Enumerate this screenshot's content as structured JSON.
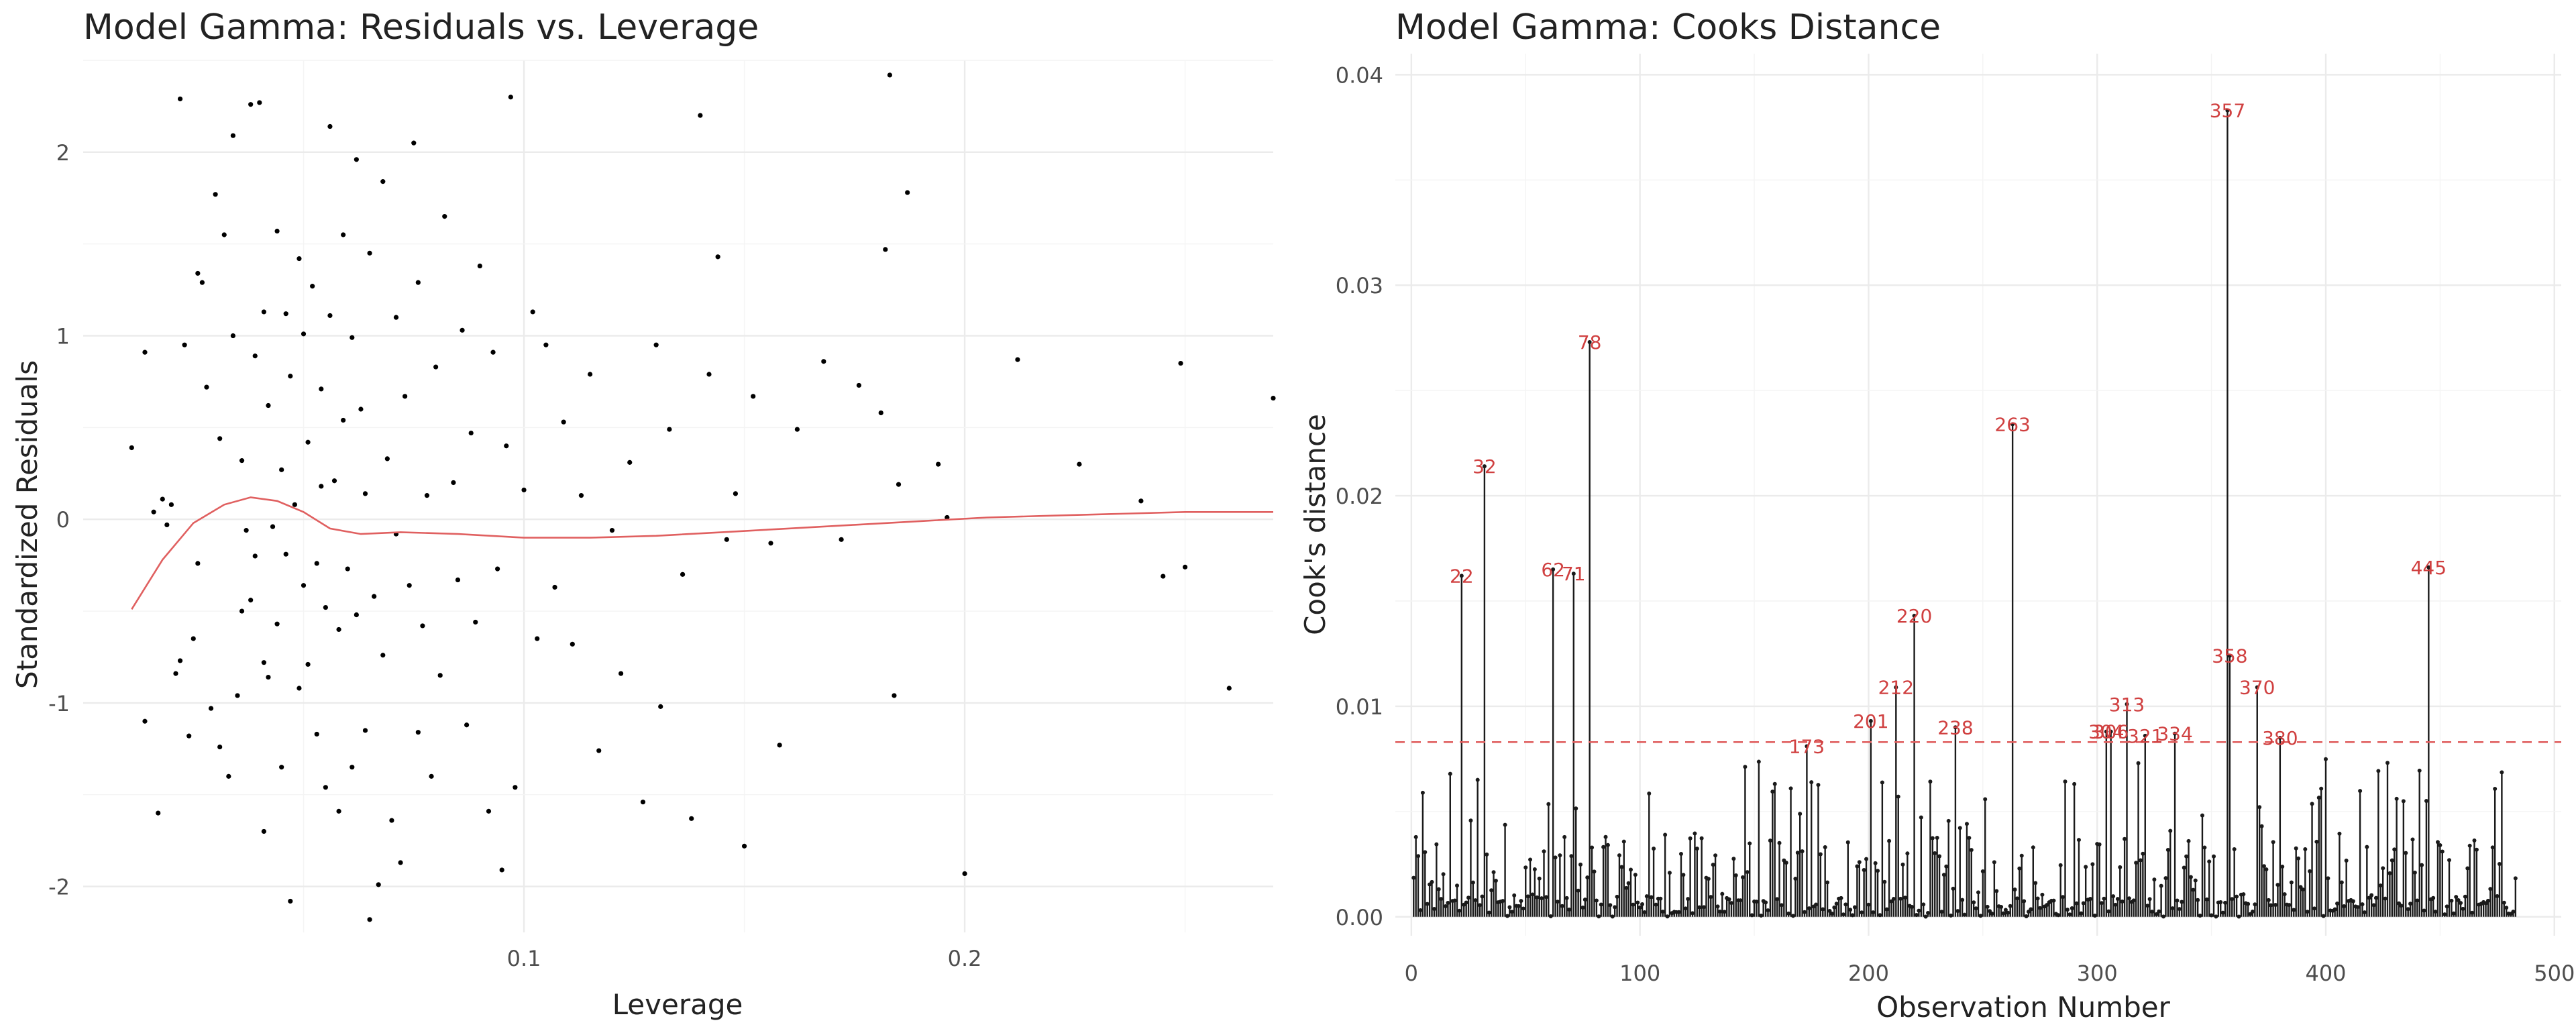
{
  "chart_data": [
    {
      "type": "scatter",
      "title": "Model Gamma: Residuals vs. Leverage",
      "xlabel": "Leverage",
      "ylabel": "Standardized Residuals",
      "xlim": [
        0.0,
        0.27
      ],
      "ylim": [
        -2.25,
        2.5
      ],
      "xticks": [
        0.1,
        0.2
      ],
      "xtick_labels": [
        "0.1",
        "0.2"
      ],
      "yticks": [
        -2,
        -1,
        0,
        1,
        2
      ],
      "ytick_labels": [
        "-2",
        "-1",
        "0",
        "1",
        "2"
      ],
      "grid": true,
      "point_color": "#000000",
      "smooth_color": "#e06060",
      "points": [
        [
          0.011,
          0.39
        ],
        [
          0.014,
          0.91
        ],
        [
          0.014,
          -1.1
        ],
        [
          0.016,
          0.04
        ],
        [
          0.017,
          -1.6
        ],
        [
          0.018,
          0.11
        ],
        [
          0.019,
          -0.03
        ],
        [
          0.02,
          0.08
        ],
        [
          0.021,
          -0.84
        ],
        [
          0.022,
          2.29
        ],
        [
          0.022,
          -0.77
        ],
        [
          0.023,
          0.95
        ],
        [
          0.024,
          -1.18
        ],
        [
          0.025,
          -0.65
        ],
        [
          0.026,
          1.34
        ],
        [
          0.026,
          -0.24
        ],
        [
          0.027,
          1.29
        ],
        [
          0.028,
          0.72
        ],
        [
          0.029,
          -1.03
        ],
        [
          0.03,
          1.77
        ],
        [
          0.031,
          -1.24
        ],
        [
          0.031,
          0.44
        ],
        [
          0.032,
          1.55
        ],
        [
          0.033,
          -1.4
        ],
        [
          0.034,
          2.09
        ],
        [
          0.034,
          1.0
        ],
        [
          0.035,
          -0.96
        ],
        [
          0.036,
          0.32
        ],
        [
          0.036,
          -0.5
        ],
        [
          0.037,
          -0.06
        ],
        [
          0.038,
          -0.44
        ],
        [
          0.038,
          2.26
        ],
        [
          0.039,
          -0.2
        ],
        [
          0.039,
          0.89
        ],
        [
          0.04,
          2.27
        ],
        [
          0.041,
          1.13
        ],
        [
          0.041,
          -0.78
        ],
        [
          0.041,
          -1.7
        ],
        [
          0.042,
          -0.86
        ],
        [
          0.042,
          0.62
        ],
        [
          0.043,
          -0.04
        ],
        [
          0.044,
          1.57
        ],
        [
          0.044,
          -0.57
        ],
        [
          0.045,
          -1.35
        ],
        [
          0.045,
          0.27
        ],
        [
          0.046,
          1.12
        ],
        [
          0.046,
          -0.19
        ],
        [
          0.047,
          -2.08
        ],
        [
          0.047,
          0.78
        ],
        [
          0.048,
          0.08
        ],
        [
          0.049,
          -0.92
        ],
        [
          0.049,
          1.42
        ],
        [
          0.05,
          1.01
        ],
        [
          0.05,
          -0.36
        ],
        [
          0.051,
          -0.79
        ],
        [
          0.051,
          0.42
        ],
        [
          0.052,
          1.27
        ],
        [
          0.053,
          -0.24
        ],
        [
          0.053,
          -1.17
        ],
        [
          0.054,
          0.18
        ],
        [
          0.054,
          0.71
        ],
        [
          0.055,
          -1.46
        ],
        [
          0.055,
          -0.48
        ],
        [
          0.056,
          2.14
        ],
        [
          0.056,
          1.11
        ],
        [
          0.057,
          0.21
        ],
        [
          0.058,
          -0.6
        ],
        [
          0.058,
          -1.59
        ],
        [
          0.059,
          0.54
        ],
        [
          0.059,
          1.55
        ],
        [
          0.06,
          -0.27
        ],
        [
          0.061,
          0.99
        ],
        [
          0.061,
          -1.35
        ],
        [
          0.062,
          1.96
        ],
        [
          0.062,
          -0.52
        ],
        [
          0.063,
          0.6
        ],
        [
          0.064,
          -1.15
        ],
        [
          0.064,
          0.14
        ],
        [
          0.065,
          1.45
        ],
        [
          0.065,
          -2.18
        ],
        [
          0.066,
          -0.42
        ],
        [
          0.067,
          -1.99
        ],
        [
          0.068,
          1.84
        ],
        [
          0.068,
          -0.74
        ],
        [
          0.069,
          0.33
        ],
        [
          0.07,
          -1.64
        ],
        [
          0.071,
          1.1
        ],
        [
          0.071,
          -0.08
        ],
        [
          0.072,
          -1.87
        ],
        [
          0.073,
          0.67
        ],
        [
          0.074,
          -0.36
        ],
        [
          0.075,
          2.05
        ],
        [
          0.076,
          1.29
        ],
        [
          0.076,
          -1.16
        ],
        [
          0.077,
          -0.58
        ],
        [
          0.078,
          0.13
        ],
        [
          0.079,
          -1.4
        ],
        [
          0.08,
          0.83
        ],
        [
          0.081,
          -0.85
        ],
        [
          0.082,
          1.65
        ],
        [
          0.084,
          0.2
        ],
        [
          0.085,
          -0.33
        ],
        [
          0.086,
          1.03
        ],
        [
          0.087,
          -1.12
        ],
        [
          0.088,
          0.47
        ],
        [
          0.089,
          -0.56
        ],
        [
          0.09,
          1.38
        ],
        [
          0.092,
          -1.59
        ],
        [
          0.093,
          0.91
        ],
        [
          0.094,
          -0.27
        ],
        [
          0.095,
          -1.91
        ],
        [
          0.096,
          0.4
        ],
        [
          0.097,
          2.3
        ],
        [
          0.098,
          -1.46
        ],
        [
          0.1,
          0.16
        ],
        [
          0.102,
          1.13
        ],
        [
          0.103,
          -0.65
        ],
        [
          0.105,
          0.95
        ],
        [
          0.107,
          -0.37
        ],
        [
          0.109,
          0.53
        ],
        [
          0.111,
          -0.68
        ],
        [
          0.113,
          0.13
        ],
        [
          0.115,
          0.79
        ],
        [
          0.117,
          -1.26
        ],
        [
          0.12,
          -0.06
        ],
        [
          0.122,
          -0.84
        ],
        [
          0.124,
          0.31
        ],
        [
          0.127,
          -1.54
        ],
        [
          0.13,
          0.95
        ],
        [
          0.131,
          -1.02
        ],
        [
          0.133,
          0.49
        ],
        [
          0.136,
          -0.3
        ],
        [
          0.138,
          -1.63
        ],
        [
          0.14,
          2.2
        ],
        [
          0.142,
          0.79
        ],
        [
          0.144,
          1.43
        ],
        [
          0.146,
          -0.11
        ],
        [
          0.148,
          0.14
        ],
        [
          0.15,
          -1.78
        ],
        [
          0.152,
          0.67
        ],
        [
          0.156,
          -0.13
        ],
        [
          0.158,
          -1.23
        ],
        [
          0.162,
          0.49
        ],
        [
          0.168,
          0.86
        ],
        [
          0.172,
          -0.11
        ],
        [
          0.176,
          0.73
        ],
        [
          0.181,
          0.58
        ],
        [
          0.182,
          1.47
        ],
        [
          0.183,
          2.42
        ],
        [
          0.184,
          -0.96
        ],
        [
          0.185,
          0.19
        ],
        [
          0.187,
          1.78
        ],
        [
          0.194,
          0.3
        ],
        [
          0.196,
          0.01
        ],
        [
          0.2,
          -1.93
        ],
        [
          0.212,
          0.87
        ],
        [
          0.226,
          0.3
        ],
        [
          0.24,
          0.1
        ],
        [
          0.245,
          -0.31
        ],
        [
          0.25,
          -0.26
        ],
        [
          0.249,
          0.85
        ],
        [
          0.26,
          -0.92
        ],
        [
          0.27,
          0.66
        ]
      ],
      "smooth": [
        [
          0.011,
          -0.49
        ],
        [
          0.018,
          -0.22
        ],
        [
          0.025,
          -0.02
        ],
        [
          0.032,
          0.08
        ],
        [
          0.038,
          0.12
        ],
        [
          0.044,
          0.1
        ],
        [
          0.05,
          0.04
        ],
        [
          0.056,
          -0.05
        ],
        [
          0.063,
          -0.08
        ],
        [
          0.072,
          -0.07
        ],
        [
          0.085,
          -0.08
        ],
        [
          0.1,
          -0.1
        ],
        [
          0.115,
          -0.1
        ],
        [
          0.13,
          -0.09
        ],
        [
          0.145,
          -0.07
        ],
        [
          0.16,
          -0.05
        ],
        [
          0.175,
          -0.03
        ],
        [
          0.19,
          -0.01
        ],
        [
          0.205,
          0.01
        ],
        [
          0.22,
          0.02
        ],
        [
          0.235,
          0.03
        ],
        [
          0.25,
          0.04
        ],
        [
          0.27,
          0.04
        ]
      ]
    },
    {
      "type": "bar",
      "title": "Model Gamma: Cooks Distance",
      "xlabel": "Observation Number",
      "ylabel": "Cook's distance",
      "xlim": [
        -7,
        503
      ],
      "ylim": [
        -0.0009,
        0.041
      ],
      "xticks": [
        0,
        100,
        200,
        300,
        400,
        500
      ],
      "xtick_labels": [
        "0",
        "100",
        "200",
        "300",
        "400",
        "500"
      ],
      "yticks": [
        0.0,
        0.01,
        0.02,
        0.03,
        0.04
      ],
      "ytick_labels": [
        "0.00",
        "0.01",
        "0.02",
        "0.03",
        "0.04"
      ],
      "grid": true,
      "n_observations": 483,
      "threshold": 0.0083,
      "threshold_color": "#e06060",
      "label_color": "#d04040",
      "influential": [
        {
          "obs": 22,
          "value": 0.0162,
          "label": "22"
        },
        {
          "obs": 32,
          "value": 0.0214,
          "label": "32"
        },
        {
          "obs": 62,
          "value": 0.0165,
          "label": "62"
        },
        {
          "obs": 71,
          "value": 0.0163,
          "label": "71"
        },
        {
          "obs": 78,
          "value": 0.0273,
          "label": "78"
        },
        {
          "obs": 173,
          "value": 0.0081,
          "label": "173"
        },
        {
          "obs": 201,
          "value": 0.0093,
          "label": "201"
        },
        {
          "obs": 212,
          "value": 0.0109,
          "label": "212"
        },
        {
          "obs": 220,
          "value": 0.0143,
          "label": "220"
        },
        {
          "obs": 238,
          "value": 0.009,
          "label": "238"
        },
        {
          "obs": 263,
          "value": 0.0234,
          "label": "263"
        },
        {
          "obs": 304,
          "value": 0.0088,
          "label": "304"
        },
        {
          "obs": 306,
          "value": 0.0088,
          "label": "306"
        },
        {
          "obs": 313,
          "value": 0.0101,
          "label": "313"
        },
        {
          "obs": 321,
          "value": 0.0086,
          "label": "321"
        },
        {
          "obs": 334,
          "value": 0.0087,
          "label": "334"
        },
        {
          "obs": 357,
          "value": 0.0383,
          "label": "357"
        },
        {
          "obs": 358,
          "value": 0.0124,
          "label": "358"
        },
        {
          "obs": 370,
          "value": 0.0109,
          "label": "370"
        },
        {
          "obs": 380,
          "value": 0.0085,
          "label": "380"
        },
        {
          "obs": 445,
          "value": 0.0166,
          "label": "445"
        }
      ]
    }
  ]
}
